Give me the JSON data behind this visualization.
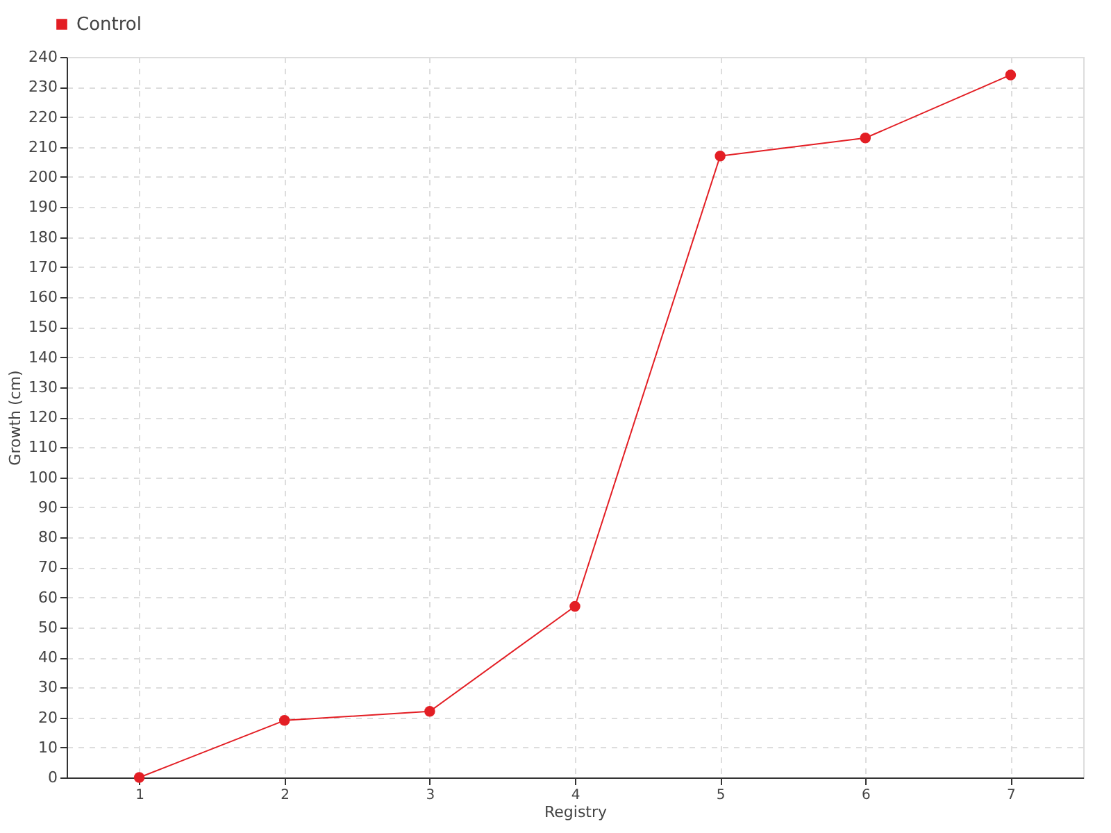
{
  "chart_data": {
    "type": "line",
    "xlabel": "Registry",
    "ylabel": "Growth (cm)",
    "categories": [
      "1",
      "2",
      "3",
      "4",
      "5",
      "6",
      "7"
    ],
    "series": [
      {
        "name": "Control",
        "color": "#e31e24",
        "values": [
          0,
          19,
          22,
          57,
          207,
          213,
          234
        ]
      }
    ],
    "ylim": [
      0,
      240
    ],
    "yticks": [
      0,
      10,
      20,
      30,
      40,
      50,
      60,
      70,
      80,
      90,
      100,
      110,
      120,
      130,
      140,
      150,
      160,
      170,
      180,
      190,
      200,
      210,
      220,
      230,
      240
    ],
    "grid": true,
    "legend": "top left",
    "marker": "circle",
    "line_style": "solid"
  }
}
